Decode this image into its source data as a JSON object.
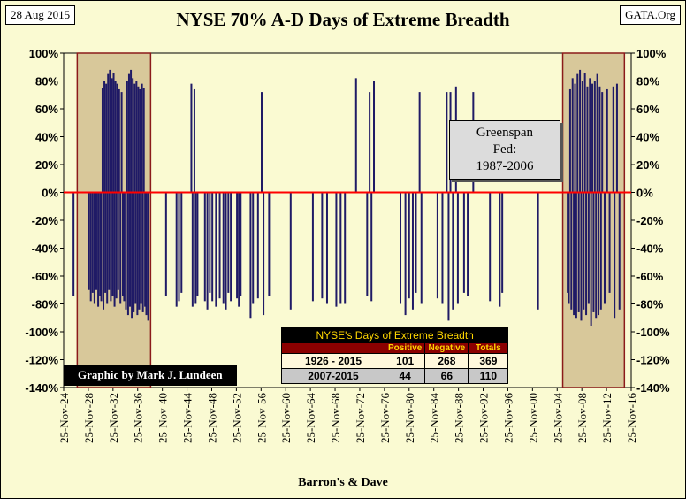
{
  "header": {
    "date": "28 Aug 2015",
    "source": "GATA.Org"
  },
  "credit": "Graphic by Mark J. Lundeen",
  "annotation": [
    "Greenspan",
    "Fed:",
    "1987-2006"
  ],
  "colors": {
    "bar": "#1f1a66",
    "zero_line": "#ff0000",
    "highlight": "#d8c89a",
    "highlight_border": "#8b1a1a",
    "background": "#fafad2"
  },
  "stats_table": {
    "title": "NYSE's Days of Extreme Breadth",
    "columns": [
      "",
      "Positive",
      "Negative",
      "Totals"
    ],
    "rows": [
      {
        "period": "1926 - 2015",
        "positive": "101",
        "negative": "268",
        "totals": "369"
      },
      {
        "period": "2007-2015",
        "positive": "44",
        "negative": "66",
        "totals": "110"
      }
    ]
  },
  "chart_data": {
    "type": "bar",
    "title": "NYSE 70% A-D Days of Extreme Breadth",
    "xlabel": "Barron's & Dave",
    "ylabel": "",
    "ylim": [
      -140,
      100
    ],
    "xlim": [
      1924.9,
      2016.9
    ],
    "y_ticks": [
      "100%",
      "80%",
      "60%",
      "40%",
      "20%",
      "0%",
      "-20%",
      "-40%",
      "-60%",
      "-80%",
      "-100%",
      "-120%",
      "-140%"
    ],
    "x_ticks": [
      "25-Nov-24",
      "25-Nov-28",
      "25-Nov-32",
      "25-Nov-36",
      "25-Nov-40",
      "25-Nov-44",
      "25-Nov-48",
      "25-Nov-52",
      "25-Nov-56",
      "25-Nov-60",
      "25-Nov-64",
      "25-Nov-68",
      "25-Nov-72",
      "25-Nov-76",
      "25-Nov-80",
      "25-Nov-84",
      "25-Nov-88",
      "25-Nov-92",
      "25-Nov-96",
      "25-Nov-00",
      "25-Nov-04",
      "25-Nov-08",
      "25-Nov-12",
      "25-Nov-16"
    ],
    "x_tick_years": [
      1924.9,
      1928.9,
      1932.9,
      1936.9,
      1940.9,
      1944.9,
      1948.9,
      1952.9,
      1956.9,
      1960.9,
      1964.9,
      1968.9,
      1972.9,
      1976.9,
      1980.9,
      1984.9,
      1988.9,
      1992.9,
      1996.9,
      2000.9,
      2004.9,
      2008.9,
      2012.9,
      2016.9
    ],
    "shaded_periods": [
      [
        1927.1,
        1939.0
      ],
      [
        2005.8,
        2015.8
      ]
    ],
    "reference_line": 0,
    "grid": false,
    "series": [
      {
        "values": [
          {
            "x": 1926.5,
            "y": -74
          },
          {
            "x": 1929.0,
            "y": -70
          },
          {
            "x": 1929.3,
            "y": -78
          },
          {
            "x": 1929.6,
            "y": -72
          },
          {
            "x": 1929.9,
            "y": -80
          },
          {
            "x": 1930.2,
            "y": -70
          },
          {
            "x": 1930.5,
            "y": -82
          },
          {
            "x": 1930.8,
            "y": -74
          },
          {
            "x": 1931.0,
            "y": -78
          },
          {
            "x": 1931.2,
            "y": 75
          },
          {
            "x": 1931.35,
            "y": -84
          },
          {
            "x": 1931.5,
            "y": 80
          },
          {
            "x": 1931.65,
            "y": -72
          },
          {
            "x": 1931.8,
            "y": 78
          },
          {
            "x": 1931.95,
            "y": -80
          },
          {
            "x": 1932.1,
            "y": 85
          },
          {
            "x": 1932.25,
            "y": -70
          },
          {
            "x": 1932.4,
            "y": 88
          },
          {
            "x": 1932.55,
            "y": -78
          },
          {
            "x": 1932.7,
            "y": 82
          },
          {
            "x": 1932.85,
            "y": -74
          },
          {
            "x": 1933.0,
            "y": 86
          },
          {
            "x": 1933.15,
            "y": -82
          },
          {
            "x": 1933.3,
            "y": 80
          },
          {
            "x": 1933.45,
            "y": -76
          },
          {
            "x": 1933.6,
            "y": 78
          },
          {
            "x": 1933.75,
            "y": -70
          },
          {
            "x": 1933.9,
            "y": 74
          },
          {
            "x": 1934.1,
            "y": -80
          },
          {
            "x": 1934.3,
            "y": 72
          },
          {
            "x": 1934.5,
            "y": -74
          },
          {
            "x": 1934.7,
            "y": -78
          },
          {
            "x": 1935.0,
            "y": -84
          },
          {
            "x": 1935.2,
            "y": 80
          },
          {
            "x": 1935.35,
            "y": -88
          },
          {
            "x": 1935.5,
            "y": 85
          },
          {
            "x": 1935.65,
            "y": -82
          },
          {
            "x": 1935.8,
            "y": 88
          },
          {
            "x": 1935.95,
            "y": -90
          },
          {
            "x": 1936.1,
            "y": 82
          },
          {
            "x": 1936.25,
            "y": -86
          },
          {
            "x": 1936.4,
            "y": 78
          },
          {
            "x": 1936.55,
            "y": -80
          },
          {
            "x": 1936.7,
            "y": 80
          },
          {
            "x": 1936.85,
            "y": -88
          },
          {
            "x": 1937.0,
            "y": 76
          },
          {
            "x": 1937.15,
            "y": -84
          },
          {
            "x": 1937.3,
            "y": 74
          },
          {
            "x": 1937.45,
            "y": -80
          },
          {
            "x": 1937.6,
            "y": 78
          },
          {
            "x": 1937.75,
            "y": -86
          },
          {
            "x": 1937.9,
            "y": 75
          },
          {
            "x": 1938.1,
            "y": -82
          },
          {
            "x": 1938.3,
            "y": -88
          },
          {
            "x": 1938.6,
            "y": -92
          },
          {
            "x": 1941.5,
            "y": -74
          },
          {
            "x": 1943.2,
            "y": -82
          },
          {
            "x": 1943.6,
            "y": -78
          },
          {
            "x": 1944.0,
            "y": -72
          },
          {
            "x": 1945.6,
            "y": 78
          },
          {
            "x": 1945.8,
            "y": -82
          },
          {
            "x": 1946.1,
            "y": 74
          },
          {
            "x": 1946.3,
            "y": -80
          },
          {
            "x": 1946.6,
            "y": -74
          },
          {
            "x": 1947.8,
            "y": -78
          },
          {
            "x": 1948.2,
            "y": -84
          },
          {
            "x": 1948.6,
            "y": -72
          },
          {
            "x": 1949.0,
            "y": -78
          },
          {
            "x": 1949.6,
            "y": -82
          },
          {
            "x": 1950.2,
            "y": -76
          },
          {
            "x": 1950.8,
            "y": -80
          },
          {
            "x": 1951.2,
            "y": -84
          },
          {
            "x": 1951.6,
            "y": -72
          },
          {
            "x": 1952.0,
            "y": -78
          },
          {
            "x": 1953.0,
            "y": -76
          },
          {
            "x": 1953.3,
            "y": -82
          },
          {
            "x": 1953.6,
            "y": -74
          },
          {
            "x": 1955.2,
            "y": -90
          },
          {
            "x": 1955.6,
            "y": -80
          },
          {
            "x": 1956.4,
            "y": -76
          },
          {
            "x": 1957.0,
            "y": 72
          },
          {
            "x": 1957.3,
            "y": -88
          },
          {
            "x": 1958.2,
            "y": -74
          },
          {
            "x": 1961.7,
            "y": -84
          },
          {
            "x": 1965.3,
            "y": -78
          },
          {
            "x": 1966.8,
            "y": -76
          },
          {
            "x": 1967.6,
            "y": -80
          },
          {
            "x": 1969.1,
            "y": -82
          },
          {
            "x": 1969.8,
            "y": -80
          },
          {
            "x": 1970.5,
            "y": -80
          },
          {
            "x": 1972.3,
            "y": 82
          },
          {
            "x": 1974.1,
            "y": -74
          },
          {
            "x": 1974.5,
            "y": 72
          },
          {
            "x": 1974.8,
            "y": -78
          },
          {
            "x": 1975.2,
            "y": 80
          },
          {
            "x": 1979.5,
            "y": -80
          },
          {
            "x": 1980.3,
            "y": -88
          },
          {
            "x": 1980.9,
            "y": -76
          },
          {
            "x": 1981.5,
            "y": -84
          },
          {
            "x": 1982.0,
            "y": -72
          },
          {
            "x": 1982.6,
            "y": 72
          },
          {
            "x": 1982.9,
            "y": -80
          },
          {
            "x": 1985.5,
            "y": -76
          },
          {
            "x": 1986.3,
            "y": -80
          },
          {
            "x": 1987.0,
            "y": 72
          },
          {
            "x": 1987.3,
            "y": -92
          },
          {
            "x": 1987.6,
            "y": 72
          },
          {
            "x": 1988.0,
            "y": -84
          },
          {
            "x": 1988.5,
            "y": 76
          },
          {
            "x": 1988.8,
            "y": -80
          },
          {
            "x": 1989.8,
            "y": -72
          },
          {
            "x": 1990.4,
            "y": -74
          },
          {
            "x": 1991.3,
            "y": 72
          },
          {
            "x": 1994.0,
            "y": -78
          },
          {
            "x": 1995.6,
            "y": -82
          },
          {
            "x": 1996.0,
            "y": -72
          },
          {
            "x": 2001.8,
            "y": -84
          },
          {
            "x": 2006.6,
            "y": -72
          },
          {
            "x": 2006.8,
            "y": -80
          },
          {
            "x": 2007.0,
            "y": 74
          },
          {
            "x": 2007.2,
            "y": -84
          },
          {
            "x": 2007.4,
            "y": 82
          },
          {
            "x": 2007.6,
            "y": -88
          },
          {
            "x": 2007.8,
            "y": 78
          },
          {
            "x": 2008.0,
            "y": -90
          },
          {
            "x": 2008.2,
            "y": 85
          },
          {
            "x": 2008.4,
            "y": -86
          },
          {
            "x": 2008.6,
            "y": 88
          },
          {
            "x": 2008.8,
            "y": -92
          },
          {
            "x": 2009.0,
            "y": 80
          },
          {
            "x": 2009.2,
            "y": -84
          },
          {
            "x": 2009.4,
            "y": 86
          },
          {
            "x": 2009.6,
            "y": -88
          },
          {
            "x": 2009.8,
            "y": 76
          },
          {
            "x": 2010.0,
            "y": -80
          },
          {
            "x": 2010.2,
            "y": 82
          },
          {
            "x": 2010.4,
            "y": -96
          },
          {
            "x": 2010.6,
            "y": 78
          },
          {
            "x": 2010.8,
            "y": -86
          },
          {
            "x": 2011.0,
            "y": 80
          },
          {
            "x": 2011.2,
            "y": -90
          },
          {
            "x": 2011.4,
            "y": 85
          },
          {
            "x": 2011.6,
            "y": -88
          },
          {
            "x": 2011.8,
            "y": 76
          },
          {
            "x": 2012.0,
            "y": -84
          },
          {
            "x": 2012.2,
            "y": 72
          },
          {
            "x": 2012.6,
            "y": -80
          },
          {
            "x": 2013.0,
            "y": 74
          },
          {
            "x": 2013.4,
            "y": -72
          },
          {
            "x": 2014.0,
            "y": 76
          },
          {
            "x": 2014.2,
            "y": -90
          },
          {
            "x": 2014.6,
            "y": 78
          },
          {
            "x": 2015.0,
            "y": -84
          }
        ]
      }
    ]
  }
}
